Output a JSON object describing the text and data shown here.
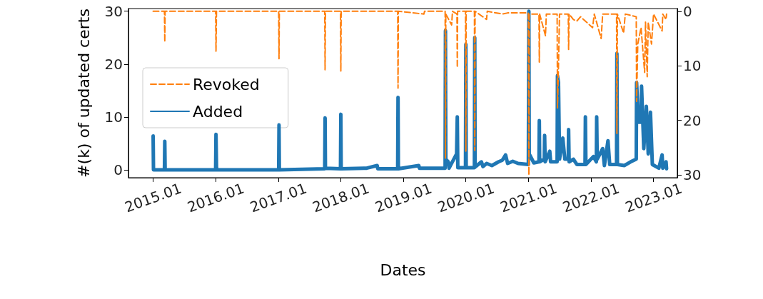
{
  "chart_data": {
    "type": "line",
    "xlabel": "Dates",
    "ylabel": "#(k) of updated certs",
    "xlim": [
      "2014-08-10",
      "2023-05-20"
    ],
    "xticks": [
      {
        "value": "2015-01",
        "label": "2015.01"
      },
      {
        "value": "2016-01",
        "label": "2016.01"
      },
      {
        "value": "2017-01",
        "label": "2017.01"
      },
      {
        "value": "2018-01",
        "label": "2018.01"
      },
      {
        "value": "2019-01",
        "label": "2019.01"
      },
      {
        "value": "2020-01",
        "label": "2020.01"
      },
      {
        "value": "2021-01",
        "label": "2021.01"
      },
      {
        "value": "2022-01",
        "label": "2022.01"
      },
      {
        "value": "2023-01",
        "label": "2023.01"
      }
    ],
    "ylim": [
      -1.5,
      30.5
    ],
    "yticks": [
      0,
      10,
      20,
      30
    ],
    "y2lim": [
      30.5,
      -0.5
    ],
    "y2ticks": [
      0,
      10,
      20,
      30
    ],
    "grid": false,
    "legend": "left",
    "marker": "none",
    "series": [
      {
        "name": "Revoked",
        "color": "#ff7f0e",
        "axis": "y2",
        "line_style": "dashed",
        "x": [
          "2015-01-01",
          "2015-03-08",
          "2015-03-10",
          "2015-03-12",
          "2016-01-01",
          "2016-01-03",
          "2016-01-06",
          "2017-01-03",
          "2017-01-05",
          "2017-01-07",
          "2017-09-29",
          "2017-10-01",
          "2017-10-03",
          "2017-12-30",
          "2018-01-01",
          "2018-01-03",
          "2018-11-29",
          "2018-12-01",
          "2018-12-03",
          "2019-05-01",
          "2019-05-05",
          "2019-09-02",
          "2019-09-04",
          "2019-09-06",
          "2019-10-10",
          "2019-10-15",
          "2019-11-10",
          "2019-11-12",
          "2019-11-14",
          "2019-12-30",
          "2020-01-01",
          "2020-01-03",
          "2020-02-20",
          "2020-02-22",
          "2020-02-24",
          "2020-05-01",
          "2020-05-05",
          "2020-08-01",
          "2020-09-01",
          "2020-12-31",
          "2021-01-03",
          "2021-01-05",
          "2021-03-03",
          "2021-03-05",
          "2021-03-07",
          "2021-04-10",
          "2021-04-15",
          "2021-06-17",
          "2021-06-19",
          "2021-06-25",
          "2021-07-01",
          "2021-08-21",
          "2021-08-23",
          "2021-08-26",
          "2021-09-20",
          "2021-10-10",
          "2021-11-01",
          "2022-01-10",
          "2022-01-20",
          "2022-03-01",
          "2022-03-10",
          "2022-05-30",
          "2022-06-01",
          "2022-06-04",
          "2022-07-10",
          "2022-07-20",
          "2022-09-22",
          "2022-09-24",
          "2022-10-01",
          "2022-10-20",
          "2022-11-10",
          "2022-11-15",
          "2022-11-25",
          "2022-12-01",
          "2022-12-20",
          "2023-01-01",
          "2023-02-20",
          "2023-02-24",
          "2023-03-15",
          "2023-03-18"
        ],
        "values": [
          0,
          0,
          5.6,
          0,
          0,
          7.3,
          0,
          0,
          8.7,
          0,
          0,
          10.7,
          0,
          0,
          11,
          0,
          0,
          14.1,
          0,
          0.5,
          0,
          0,
          26.9,
          0.5,
          2.5,
          0,
          0.5,
          10.3,
          0,
          0,
          25.7,
          0,
          0,
          25.5,
          0,
          1.5,
          0,
          0.5,
          0.3,
          0.3,
          30,
          0.5,
          0.5,
          9.3,
          0.5,
          4.5,
          0.5,
          0.5,
          17.7,
          10,
          0.5,
          0.5,
          7,
          0.5,
          1.5,
          1.8,
          1,
          3,
          0.5,
          5,
          0.5,
          0.5,
          22.4,
          0.5,
          4,
          0.5,
          1,
          16.5,
          6,
          3,
          11.2,
          2,
          12,
          2,
          6,
          0.5,
          3.6,
          0.5,
          1.5,
          0.5
        ]
      },
      {
        "name": "Added",
        "color": "#1f77b4",
        "line_style": "solid",
        "x": [
          "2015-01-01",
          "2015-01-03",
          "2015-03-08",
          "2015-03-10",
          "2015-03-12",
          "2016-01-01",
          "2016-01-03",
          "2016-01-06",
          "2016-01-09",
          "2017-01-03",
          "2017-01-05",
          "2017-01-07",
          "2017-09-29",
          "2017-10-01",
          "2017-10-03",
          "2017-12-30",
          "2018-01-01",
          "2018-01-03",
          "2018-06-01",
          "2018-08-01",
          "2018-08-05",
          "2018-11-29",
          "2018-12-01",
          "2018-12-03",
          "2019-04-01",
          "2019-04-05",
          "2019-09-02",
          "2019-09-04",
          "2019-09-06",
          "2019-09-20",
          "2019-09-25",
          "2019-11-08",
          "2019-11-12",
          "2019-11-15",
          "2019-12-30",
          "2020-01-01",
          "2020-01-03",
          "2020-02-20",
          "2020-02-22",
          "2020-02-24",
          "2020-04-01",
          "2020-04-10",
          "2020-05-01",
          "2020-06-01",
          "2020-07-10",
          "2020-08-01",
          "2020-08-20",
          "2020-09-01",
          "2020-10-01",
          "2020-11-01",
          "2020-12-31",
          "2021-01-03",
          "2021-01-05",
          "2021-02-01",
          "2021-03-03",
          "2021-03-05",
          "2021-03-07",
          "2021-04-03",
          "2021-04-05",
          "2021-04-08",
          "2021-05-05",
          "2021-05-10",
          "2021-06-17",
          "2021-06-19",
          "2021-06-25",
          "2021-07-01",
          "2021-07-20",
          "2021-08-01",
          "2021-08-21",
          "2021-08-23",
          "2021-08-26",
          "2021-09-20",
          "2021-10-10",
          "2021-11-27",
          "2021-11-29",
          "2021-12-02",
          "2022-01-15",
          "2022-02-01",
          "2022-02-03",
          "2022-02-06",
          "2022-03-10",
          "2022-03-20",
          "2022-04-10",
          "2022-04-20",
          "2022-05-30",
          "2022-06-01",
          "2022-06-04",
          "2022-07-15",
          "2022-08-20",
          "2022-09-22",
          "2022-09-24",
          "2022-10-05",
          "2022-10-20",
          "2022-10-23",
          "2022-11-05",
          "2022-11-20",
          "2022-12-01",
          "2022-12-14",
          "2022-12-25",
          "2023-02-01",
          "2023-02-20",
          "2023-02-24",
          "2023-03-15",
          "2023-03-18"
        ],
        "values": [
          6.4,
          0,
          0,
          5.4,
          0,
          0,
          6.7,
          0.5,
          0,
          0,
          8.5,
          0,
          0.2,
          9.8,
          0.3,
          0.2,
          10.5,
          0.2,
          0.3,
          0.8,
          0.2,
          0.2,
          13.7,
          0.2,
          0.8,
          0.3,
          0.3,
          26.3,
          2,
          1.5,
          0.3,
          3,
          10,
          0.4,
          0.4,
          23.7,
          0.4,
          0.4,
          25,
          0.5,
          1.5,
          0.6,
          1.2,
          0.8,
          1.5,
          1.8,
          2.8,
          1.2,
          1.6,
          1.2,
          1,
          30,
          3,
          1.3,
          1.5,
          9.3,
          1.5,
          2,
          6.5,
          1.5,
          3.5,
          1.5,
          1.5,
          17.8,
          16.5,
          2,
          6,
          2,
          2,
          7.6,
          1.5,
          2,
          1,
          1,
          10,
          1,
          2.5,
          1.5,
          10,
          2,
          4,
          0.8,
          5.5,
          1,
          1,
          22,
          1,
          0.8,
          1.5,
          2,
          16.5,
          9,
          9,
          15.8,
          4,
          12,
          3,
          10.9,
          1,
          0.3,
          2.8,
          0.3,
          1.5,
          0.2
        ]
      }
    ]
  }
}
